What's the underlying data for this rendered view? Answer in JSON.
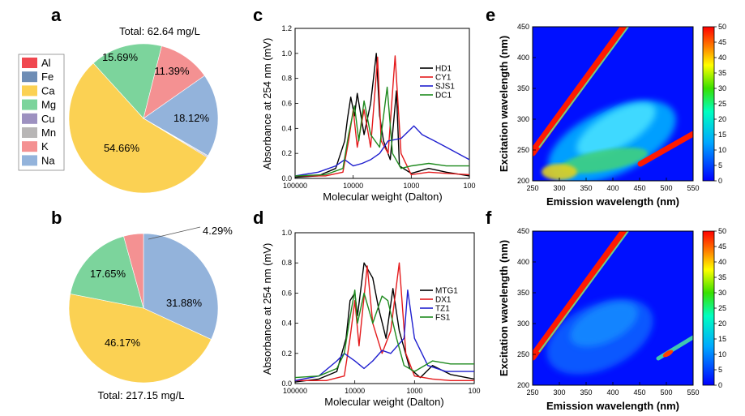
{
  "chart_data": [
    {
      "panel": "a",
      "type": "pie",
      "title": "Total: 62.64 mg/L",
      "legend": [
        "Al",
        "Fe",
        "Ca",
        "Mg",
        "Cu",
        "Mn",
        "K",
        "Na"
      ],
      "colors": {
        "Al": "#f0474f",
        "Fe": "#6e8db5",
        "Ca": "#fbd153",
        "Mg": "#7cd49c",
        "Cu": "#9d91c0",
        "Mn": "#b8b6b6",
        "K": "#f49192",
        "Na": "#93b3db"
      },
      "slices": [
        {
          "label": "Na",
          "value": 18.12,
          "text": "18.12%"
        },
        {
          "label": "Mn",
          "value": 0.2
        },
        {
          "label": "Cu",
          "value": 0.2
        },
        {
          "label": "Ca",
          "value": 54.66,
          "text": "54.66%"
        },
        {
          "label": "Mg",
          "value": 15.69,
          "text": "15.69%"
        },
        {
          "label": "K",
          "value": 11.39,
          "text": "11.39%"
        }
      ]
    },
    {
      "panel": "b",
      "type": "pie",
      "title": "Total: 217.15 mg/L",
      "slices": [
        {
          "label": "Na",
          "value": 31.88,
          "text": "31.88%"
        },
        {
          "label": "Ca",
          "value": 46.17,
          "text": "46.17%"
        },
        {
          "label": "Mg",
          "value": 17.65,
          "text": "17.65%"
        },
        {
          "label": "K",
          "value": 4.29,
          "text": "4.29%"
        }
      ]
    },
    {
      "panel": "c",
      "type": "line",
      "xlabel": "Molecular weight (Dalton)",
      "ylabel": "Absorbance at 254 nm (mV)",
      "xscale": "log-reversed",
      "xlim": [
        100000,
        100
      ],
      "ylim": [
        0,
        1.2
      ],
      "xticks": [
        "100000",
        "10000",
        "1000",
        "100"
      ],
      "yticks": [
        "0.0",
        "0.2",
        "0.4",
        "0.6",
        "0.8",
        "1.0",
        "1.2"
      ],
      "series": [
        {
          "name": "HD1",
          "color": "#000000",
          "points": [
            [
              100000,
              0.01
            ],
            [
              40000,
              0.02
            ],
            [
              20000,
              0.08
            ],
            [
              14000,
              0.3
            ],
            [
              12500,
              0.48
            ],
            [
              11000,
              0.65
            ],
            [
              9500,
              0.5
            ],
            [
              8500,
              0.68
            ],
            [
              6500,
              0.35
            ],
            [
              5000,
              0.6
            ],
            [
              4000,
              1.0
            ],
            [
              3500,
              0.5
            ],
            [
              3000,
              0.3
            ],
            [
              2300,
              0.15
            ],
            [
              1800,
              0.7
            ],
            [
              1600,
              0.1
            ],
            [
              1000,
              0.04
            ],
            [
              500,
              0.08
            ],
            [
              250,
              0.05
            ],
            [
              100,
              0.02
            ]
          ]
        },
        {
          "name": "CY1",
          "color": "#e41a1c",
          "points": [
            [
              100000,
              0.02
            ],
            [
              30000,
              0.02
            ],
            [
              15000,
              0.05
            ],
            [
              12000,
              0.3
            ],
            [
              10000,
              0.55
            ],
            [
              8500,
              0.25
            ],
            [
              6500,
              0.55
            ],
            [
              5000,
              0.25
            ],
            [
              3800,
              0.97
            ],
            [
              3300,
              0.3
            ],
            [
              2500,
              0.2
            ],
            [
              1900,
              0.98
            ],
            [
              1500,
              0.2
            ],
            [
              1000,
              0.03
            ],
            [
              500,
              0.05
            ],
            [
              250,
              0.04
            ],
            [
              100,
              0.03
            ]
          ]
        },
        {
          "name": "SJS1",
          "color": "#1f1fcf",
          "points": [
            [
              100000,
              0.02
            ],
            [
              40000,
              0.05
            ],
            [
              20000,
              0.1
            ],
            [
              14000,
              0.15
            ],
            [
              10000,
              0.1
            ],
            [
              7000,
              0.12
            ],
            [
              5000,
              0.15
            ],
            [
              3500,
              0.2
            ],
            [
              2500,
              0.3
            ],
            [
              1500,
              0.32
            ],
            [
              900,
              0.42
            ],
            [
              650,
              0.35
            ],
            [
              400,
              0.3
            ],
            [
              250,
              0.25
            ],
            [
              100,
              0.15
            ]
          ]
        },
        {
          "name": "DC1",
          "color": "#1e8a1e",
          "points": [
            [
              100000,
              0.02
            ],
            [
              30000,
              0.03
            ],
            [
              15000,
              0.08
            ],
            [
              12000,
              0.35
            ],
            [
              9500,
              0.58
            ],
            [
              8000,
              0.3
            ],
            [
              6500,
              0.62
            ],
            [
              5000,
              0.35
            ],
            [
              3500,
              0.25
            ],
            [
              2600,
              0.73
            ],
            [
              2100,
              0.2
            ],
            [
              1500,
              0.08
            ],
            [
              1000,
              0.1
            ],
            [
              500,
              0.12
            ],
            [
              250,
              0.1
            ],
            [
              100,
              0.1
            ]
          ]
        }
      ]
    },
    {
      "panel": "d",
      "type": "line",
      "xlabel": "Molecular weight (Dalton)",
      "ylabel": "Absorbance at 254 nm (mV)",
      "xscale": "log-reversed",
      "xlim": [
        100000,
        100
      ],
      "ylim": [
        0,
        1.0
      ],
      "xticks": [
        "100000",
        "10000",
        "1000",
        "100"
      ],
      "yticks": [
        "0.0",
        "0.2",
        "0.4",
        "0.6",
        "0.8",
        "1.0"
      ],
      "series": [
        {
          "name": "MTG1",
          "color": "#000000",
          "points": [
            [
              100000,
              0.01
            ],
            [
              40000,
              0.03
            ],
            [
              20000,
              0.08
            ],
            [
              14000,
              0.3
            ],
            [
              12000,
              0.55
            ],
            [
              10000,
              0.6
            ],
            [
              9000,
              0.45
            ],
            [
              7000,
              0.8
            ],
            [
              5000,
              0.7
            ],
            [
              4000,
              0.5
            ],
            [
              3000,
              0.3
            ],
            [
              2300,
              0.63
            ],
            [
              1800,
              0.35
            ],
            [
              1200,
              0.1
            ],
            [
              800,
              0.04
            ],
            [
              500,
              0.12
            ],
            [
              250,
              0.06
            ],
            [
              100,
              0.03
            ]
          ]
        },
        {
          "name": "DX1",
          "color": "#e41a1c",
          "points": [
            [
              100000,
              0.02
            ],
            [
              30000,
              0.02
            ],
            [
              15000,
              0.05
            ],
            [
              12000,
              0.3
            ],
            [
              10000,
              0.55
            ],
            [
              8500,
              0.25
            ],
            [
              6200,
              0.78
            ],
            [
              5000,
              0.4
            ],
            [
              3500,
              0.2
            ],
            [
              2500,
              0.35
            ],
            [
              1800,
              0.8
            ],
            [
              1400,
              0.2
            ],
            [
              1000,
              0.05
            ],
            [
              500,
              0.03
            ],
            [
              250,
              0.02
            ],
            [
              100,
              0.02
            ]
          ]
        },
        {
          "name": "TZ1",
          "color": "#1f1fcf",
          "points": [
            [
              100000,
              0.02
            ],
            [
              40000,
              0.05
            ],
            [
              20000,
              0.15
            ],
            [
              15000,
              0.2
            ],
            [
              10000,
              0.15
            ],
            [
              7000,
              0.1
            ],
            [
              5000,
              0.15
            ],
            [
              3500,
              0.22
            ],
            [
              2500,
              0.2
            ],
            [
              1500,
              0.3
            ],
            [
              1300,
              0.62
            ],
            [
              1000,
              0.3
            ],
            [
              600,
              0.12
            ],
            [
              300,
              0.08
            ],
            [
              100,
              0.08
            ]
          ]
        },
        {
          "name": "FS1",
          "color": "#1e8a1e",
          "points": [
            [
              100000,
              0.04
            ],
            [
              40000,
              0.05
            ],
            [
              20000,
              0.1
            ],
            [
              15000,
              0.2
            ],
            [
              12500,
              0.4
            ],
            [
              10000,
              0.62
            ],
            [
              9000,
              0.4
            ],
            [
              7000,
              0.6
            ],
            [
              5000,
              0.4
            ],
            [
              3500,
              0.58
            ],
            [
              2800,
              0.55
            ],
            [
              2000,
              0.3
            ],
            [
              1500,
              0.12
            ],
            [
              1000,
              0.08
            ],
            [
              500,
              0.15
            ],
            [
              250,
              0.13
            ],
            [
              100,
              0.13
            ]
          ]
        }
      ]
    },
    {
      "panel": "e",
      "type": "heatmap",
      "xlabel": "Emission wavelength (nm)",
      "ylabel": "Excitation wavelength (nm)",
      "xlim": [
        250,
        550
      ],
      "ylim": [
        200,
        450
      ],
      "xticks": [
        "250",
        "300",
        "350",
        "400",
        "450",
        "500",
        "550"
      ],
      "yticks": [
        "200",
        "250",
        "300",
        "350",
        "400",
        "450"
      ],
      "colorbar": {
        "min": 0,
        "max": 50,
        "ticks": [
          "0",
          "5",
          "10",
          "15",
          "20",
          "25",
          "30",
          "35",
          "40",
          "45",
          "50"
        ]
      },
      "features": [
        "Rayleigh scatter band along Ex = Em (intensity ~50)",
        "Second-order scatter band along Em = 2 Ex",
        "Broad fluorescence region Ex 200-300 nm, Em 280-500 nm (intensity 10-25)"
      ]
    },
    {
      "panel": "f",
      "type": "heatmap",
      "xlabel": "Emission wavelength (nm)",
      "ylabel": "Excitation wavelength (nm)",
      "xlim": [
        250,
        550
      ],
      "ylim": [
        200,
        450
      ],
      "xticks": [
        "250",
        "300",
        "350",
        "400",
        "450",
        "500",
        "550"
      ],
      "yticks": [
        "200",
        "250",
        "300",
        "350",
        "400",
        "450"
      ],
      "colorbar": {
        "min": 0,
        "max": 50,
        "ticks": [
          "0",
          "5",
          "10",
          "15",
          "20",
          "25",
          "30",
          "35",
          "40",
          "45",
          "50"
        ]
      },
      "features": [
        "Rayleigh scatter band along Ex = Em",
        "Weak fluorescence near Ex 200-280 nm, Em 280-400 nm (intensity 5-10)"
      ]
    }
  ],
  "panel_labels": {
    "a": "a",
    "b": "b",
    "c": "c",
    "d": "d",
    "e": "e",
    "f": "f"
  }
}
